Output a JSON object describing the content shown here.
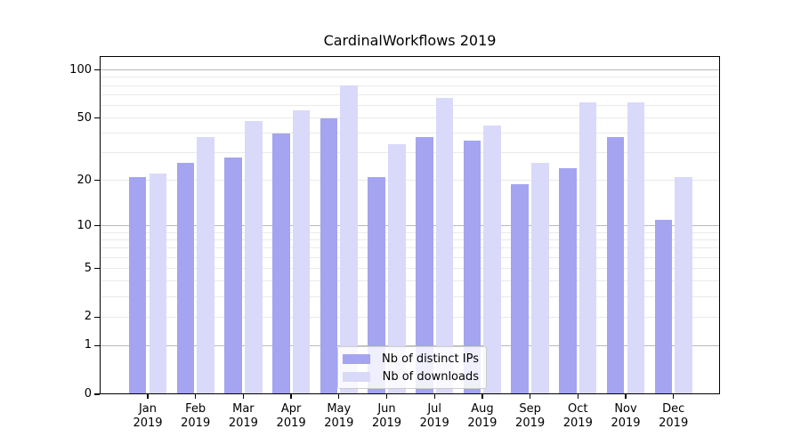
{
  "title": "CardinalWorkflows 2019",
  "chart_data": {
    "type": "bar",
    "title": "CardinalWorkflows 2019",
    "year": "2019",
    "months": [
      "Jan",
      "Feb",
      "Mar",
      "Apr",
      "May",
      "Jun",
      "Jul",
      "Aug",
      "Sep",
      "Oct",
      "Nov",
      "Dec"
    ],
    "categories": [
      "Jan 2019",
      "Feb 2019",
      "Mar 2019",
      "Apr 2019",
      "May 2019",
      "Jun 2019",
      "Jul 2019",
      "Aug 2019",
      "Sep 2019",
      "Oct 2019",
      "Nov 2019",
      "Dec 2019"
    ],
    "series": [
      {
        "name": "Nb of distinct IPs",
        "color": "#a4a4f0",
        "values": [
          21,
          26,
          28,
          40,
          50,
          21,
          38,
          36,
          19,
          24,
          38,
          11
        ]
      },
      {
        "name": "Nb of downloads",
        "color": "#d9d9f9",
        "values": [
          22,
          38,
          48,
          56,
          80,
          34,
          67,
          45,
          26,
          63,
          63,
          21
        ]
      }
    ],
    "yscale": "symlog (ln(1+x))",
    "ylim": [
      0,
      123
    ],
    "y_major_ticks": [
      0,
      1,
      2,
      5,
      10,
      20,
      50,
      100
    ],
    "y_major_gridlines": [
      1,
      10,
      100
    ],
    "y_minor_gridlines": [
      2,
      3,
      4,
      5,
      6,
      7,
      8,
      9,
      20,
      30,
      40,
      50,
      60,
      70,
      80,
      90
    ],
    "grid": true,
    "legend_position": "lower center",
    "colors": {
      "background": "#ffffff",
      "axis": "#000000",
      "major_grid": "#b9b9b9",
      "minor_grid": "#eaeaea",
      "legend_border": "#cccccc"
    }
  }
}
